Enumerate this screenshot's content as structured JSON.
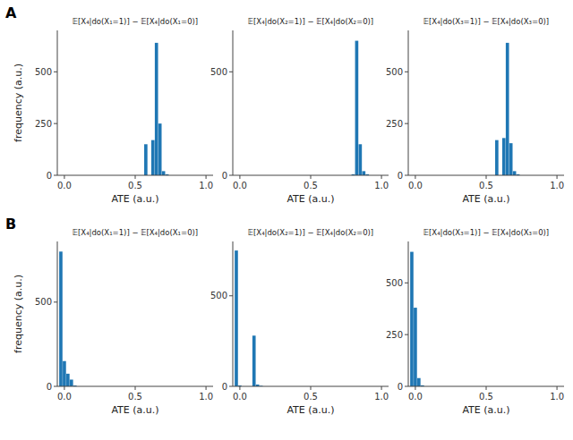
{
  "chart_data": [
    {
      "type": "bar",
      "title": "𝔼[X₄|do(X₁=1)] − 𝔼[X₄|do(X₁=0)]",
      "annotations": [
        "A"
      ],
      "x": [
        0.575,
        0.625,
        0.65,
        0.675,
        0.7,
        0.725
      ],
      "values": [
        150,
        170,
        640,
        250,
        20,
        5
      ],
      "bin_width": 0.025,
      "color": "#1f77b4",
      "xlabel": "ATE (a.u.)",
      "ylabel": "frequency (a.u.)",
      "xlim": [
        -0.05,
        1.05
      ],
      "xticks": [
        {
          "value": 0.0,
          "label": "0.0"
        },
        0.5,
        {
          "value": 1.0,
          "label": "1.0"
        }
      ],
      "ylim": [
        0,
        700
      ],
      "yticks": [
        0,
        250,
        500
      ]
    },
    {
      "type": "bar",
      "title": "𝔼[X₄|do(X₂=1)] − 𝔼[X₄|do(X₂=0)]",
      "x": [
        0.8,
        0.825,
        0.85,
        0.875,
        0.9
      ],
      "values": [
        5,
        650,
        150,
        20,
        5
      ],
      "bin_width": 0.025,
      "color": "#1f77b4",
      "xlabel": "ATE (a.u.)",
      "xlim": [
        -0.05,
        1.05
      ],
      "xticks": [
        {
          "value": 0.0,
          "label": "0.0"
        },
        0.5,
        {
          "value": 1.0,
          "label": "1.0"
        }
      ],
      "ylim": [
        0,
        700
      ],
      "yticks": [
        0,
        500
      ]
    },
    {
      "type": "bar",
      "title": "𝔼[X₄|do(X₃=1)] − 𝔼[X₄|do(X₃=0)]",
      "x": [
        0.575,
        0.625,
        0.65,
        0.675,
        0.7,
        0.725
      ],
      "values": [
        170,
        180,
        640,
        155,
        20,
        5
      ],
      "bin_width": 0.025,
      "color": "#1f77b4",
      "xlabel": "ATE (a.u.)",
      "xlim": [
        -0.05,
        1.05
      ],
      "xticks": [
        {
          "value": 0.0,
          "label": "0.0"
        },
        0.5,
        {
          "value": 1.0,
          "label": "1.0"
        }
      ],
      "ylim": [
        0,
        700
      ],
      "yticks": [
        0,
        250,
        500
      ]
    },
    {
      "type": "bar",
      "title": "𝔼[X₄|do(X₁=1)] − 𝔼[X₄|do(X₁=0)]",
      "annotations": [
        "B"
      ],
      "x": [
        -0.025,
        0.0,
        0.025,
        0.05,
        0.075
      ],
      "values": [
        800,
        150,
        75,
        40,
        5
      ],
      "bin_width": 0.025,
      "color": "#1f77b4",
      "xlabel": "ATE (a.u.)",
      "ylabel": "frequency (a.u.)",
      "xlim": [
        -0.05,
        1.05
      ],
      "xticks": [
        {
          "value": 0.0,
          "label": "0.0"
        },
        0.5,
        {
          "value": 1.0,
          "label": "1.0"
        }
      ],
      "ylim": [
        0,
        860
      ],
      "yticks": [
        0,
        500
      ]
    },
    {
      "type": "bar",
      "title": "𝔼[X₄|do(X₂=1)] − 𝔼[X₄|do(X₂=0)]",
      "x": [
        -0.025,
        0.0,
        0.1,
        0.125,
        0.15
      ],
      "values": [
        750,
        5,
        280,
        10,
        3
      ],
      "bin_width": 0.025,
      "color": "#1f77b4",
      "xlabel": "ATE (a.u.)",
      "xlim": [
        -0.05,
        1.05
      ],
      "xticks": [
        {
          "value": 0.0,
          "label": "0.0"
        },
        0.5,
        {
          "value": 1.0,
          "label": "1.0"
        }
      ],
      "ylim": [
        0,
        800
      ],
      "yticks": [
        0,
        500
      ]
    },
    {
      "type": "bar",
      "title": "𝔼[X₄|do(X₃=1)] − 𝔼[X₄|do(X₃=0)]",
      "x": [
        -0.025,
        0.0,
        0.025,
        0.05
      ],
      "values": [
        650,
        380,
        40,
        5
      ],
      "bin_width": 0.025,
      "color": "#1f77b4",
      "xlabel": "ATE (a.u.)",
      "xlim": [
        -0.05,
        1.05
      ],
      "xticks": [
        {
          "value": 0.0,
          "label": "0.0"
        },
        0.5,
        {
          "value": 1.0,
          "label": "1.0"
        }
      ],
      "ylim": [
        0,
        700
      ],
      "yticks": [
        0,
        250,
        500
      ]
    }
  ]
}
